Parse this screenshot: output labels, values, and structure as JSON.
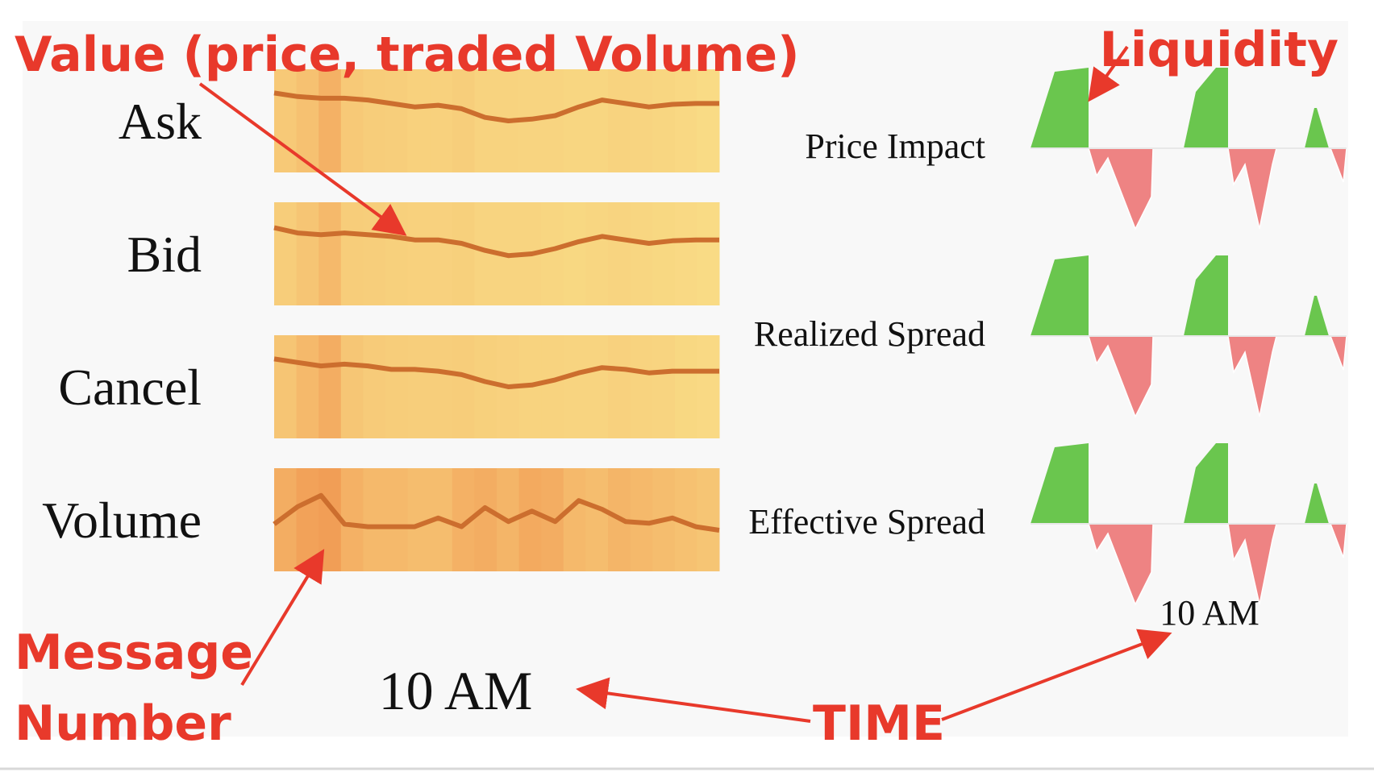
{
  "left_panel": {
    "rows": [
      {
        "label": "Ask",
        "line": [
          0.18,
          0.22,
          0.24,
          0.24,
          0.26,
          0.3,
          0.34,
          0.32,
          0.36,
          0.46,
          0.5,
          0.48,
          0.44,
          0.34,
          0.26,
          0.3,
          0.34,
          0.31,
          0.3,
          0.3
        ],
        "heat": [
          0.35,
          0.45,
          0.65,
          0.35,
          0.3,
          0.28,
          0.25,
          0.25,
          0.28,
          0.22,
          0.22,
          0.2,
          0.2,
          0.18,
          0.18,
          0.22,
          0.2,
          0.18,
          0.15,
          0.12
        ]
      },
      {
        "label": "Bid",
        "line": [
          0.2,
          0.26,
          0.28,
          0.26,
          0.28,
          0.3,
          0.34,
          0.34,
          0.38,
          0.46,
          0.52,
          0.5,
          0.44,
          0.36,
          0.3,
          0.34,
          0.38,
          0.35,
          0.34,
          0.34
        ],
        "heat": [
          0.3,
          0.4,
          0.55,
          0.3,
          0.28,
          0.26,
          0.25,
          0.24,
          0.26,
          0.2,
          0.2,
          0.2,
          0.18,
          0.16,
          0.18,
          0.2,
          0.18,
          0.16,
          0.14,
          0.12
        ]
      },
      {
        "label": "Cancel",
        "line": [
          0.18,
          0.22,
          0.26,
          0.24,
          0.26,
          0.3,
          0.3,
          0.32,
          0.36,
          0.44,
          0.5,
          0.48,
          0.42,
          0.34,
          0.28,
          0.3,
          0.34,
          0.32,
          0.32,
          0.32
        ],
        "heat": [
          0.4,
          0.55,
          0.7,
          0.38,
          0.32,
          0.3,
          0.28,
          0.28,
          0.3,
          0.26,
          0.24,
          0.22,
          0.22,
          0.2,
          0.2,
          0.24,
          0.22,
          0.2,
          0.16,
          0.14
        ]
      },
      {
        "label": "Volume",
        "line": [
          0.55,
          0.35,
          0.22,
          0.55,
          0.58,
          0.58,
          0.58,
          0.48,
          0.58,
          0.36,
          0.52,
          0.4,
          0.52,
          0.28,
          0.38,
          0.52,
          0.54,
          0.48,
          0.58,
          0.62
        ],
        "heat": [
          0.7,
          0.85,
          0.9,
          0.65,
          0.55,
          0.55,
          0.5,
          0.5,
          0.65,
          0.7,
          0.6,
          0.75,
          0.7,
          0.55,
          0.5,
          0.6,
          0.55,
          0.5,
          0.45,
          0.4
        ]
      }
    ],
    "time_label": "10 AM"
  },
  "right_panel": {
    "rows": [
      {
        "label": "Price Impact"
      },
      {
        "label": "Realized Spread"
      },
      {
        "label": "Effective Spread"
      }
    ],
    "time_label": "10 AM",
    "colors": {
      "positive": "#6ac64e",
      "negative": "#ee8383"
    }
  },
  "annotations": {
    "value": "Value (price, traded Volume)",
    "liquidity": "Liquidity",
    "message_number": [
      "Message",
      "Number"
    ],
    "time": "TIME"
  },
  "colors": {
    "annotation": "#e8392b",
    "line": "#cc6e2e",
    "background": "#f8f8f8"
  }
}
